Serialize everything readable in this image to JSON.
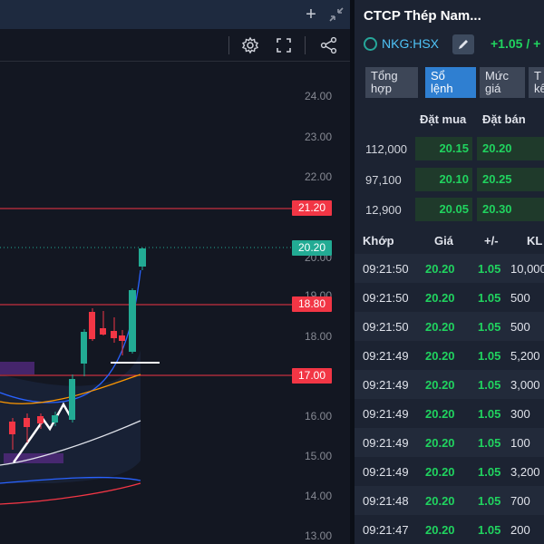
{
  "chart": {
    "price_axis": [
      "24.00",
      "23.00",
      "22.00",
      "20.00",
      "19.00",
      "18.00",
      "16.00",
      "15.00",
      "14.00",
      "13.00"
    ],
    "price_tags": [
      {
        "label": "21.20",
        "color": "#f23645"
      },
      {
        "label": "20.20",
        "color": "#22ab94"
      },
      {
        "label": "18.80",
        "color": "#f23645"
      },
      {
        "label": "17.00",
        "color": "#f23645"
      }
    ],
    "colors": {
      "up": "#22ab94",
      "down": "#f23645",
      "band_upper": "#2962ff",
      "band_mid": "#ff9800",
      "band_lower": "#2962ff",
      "ma_line": "#e0e3eb",
      "hline": "#f23645"
    }
  },
  "toolbar": {
    "top_icons": [
      "plus-icon",
      "collapse-icon"
    ],
    "icons": [
      "gear-icon",
      "fullscreen-icon",
      "share-icon"
    ]
  },
  "panel": {
    "title": "CTCP Thép Nam...",
    "ticker": "NKG:HSX",
    "change": "+1.05 / +",
    "tabs": [
      {
        "label": "Tổng hợp",
        "active": false
      },
      {
        "label": "Sổ lệnh",
        "active": true
      },
      {
        "label": "Mức giá",
        "active": false
      },
      {
        "label": "T\nkê",
        "active": false
      }
    ],
    "order_book": {
      "headers": {
        "bid": "Đặt mua",
        "ask": "Đặt bán"
      },
      "rows": [
        {
          "volume": "112,000",
          "bid": "20.15",
          "ask": "20.20"
        },
        {
          "volume": "97,100",
          "bid": "20.10",
          "ask": "20.25"
        },
        {
          "volume": "12,900",
          "bid": "20.05",
          "ask": "20.30"
        }
      ]
    },
    "trades": {
      "headers": {
        "time": "Khớp",
        "price": "Giá",
        "change": "+/-",
        "volume": "KL"
      },
      "rows": [
        {
          "time": "09:21:50",
          "price": "20.20",
          "change": "1.05",
          "volume": "10,000"
        },
        {
          "time": "09:21:50",
          "price": "20.20",
          "change": "1.05",
          "volume": "500"
        },
        {
          "time": "09:21:50",
          "price": "20.20",
          "change": "1.05",
          "volume": "500"
        },
        {
          "time": "09:21:49",
          "price": "20.20",
          "change": "1.05",
          "volume": "5,200"
        },
        {
          "time": "09:21:49",
          "price": "20.20",
          "change": "1.05",
          "volume": "3,000"
        },
        {
          "time": "09:21:49",
          "price": "20.20",
          "change": "1.05",
          "volume": "300"
        },
        {
          "time": "09:21:49",
          "price": "20.20",
          "change": "1.05",
          "volume": "100"
        },
        {
          "time": "09:21:49",
          "price": "20.20",
          "change": "1.05",
          "volume": "3,200"
        },
        {
          "time": "09:21:48",
          "price": "20.20",
          "change": "1.05",
          "volume": "700"
        },
        {
          "time": "09:21:47",
          "price": "20.20",
          "change": "1.05",
          "volume": "200"
        }
      ]
    }
  }
}
